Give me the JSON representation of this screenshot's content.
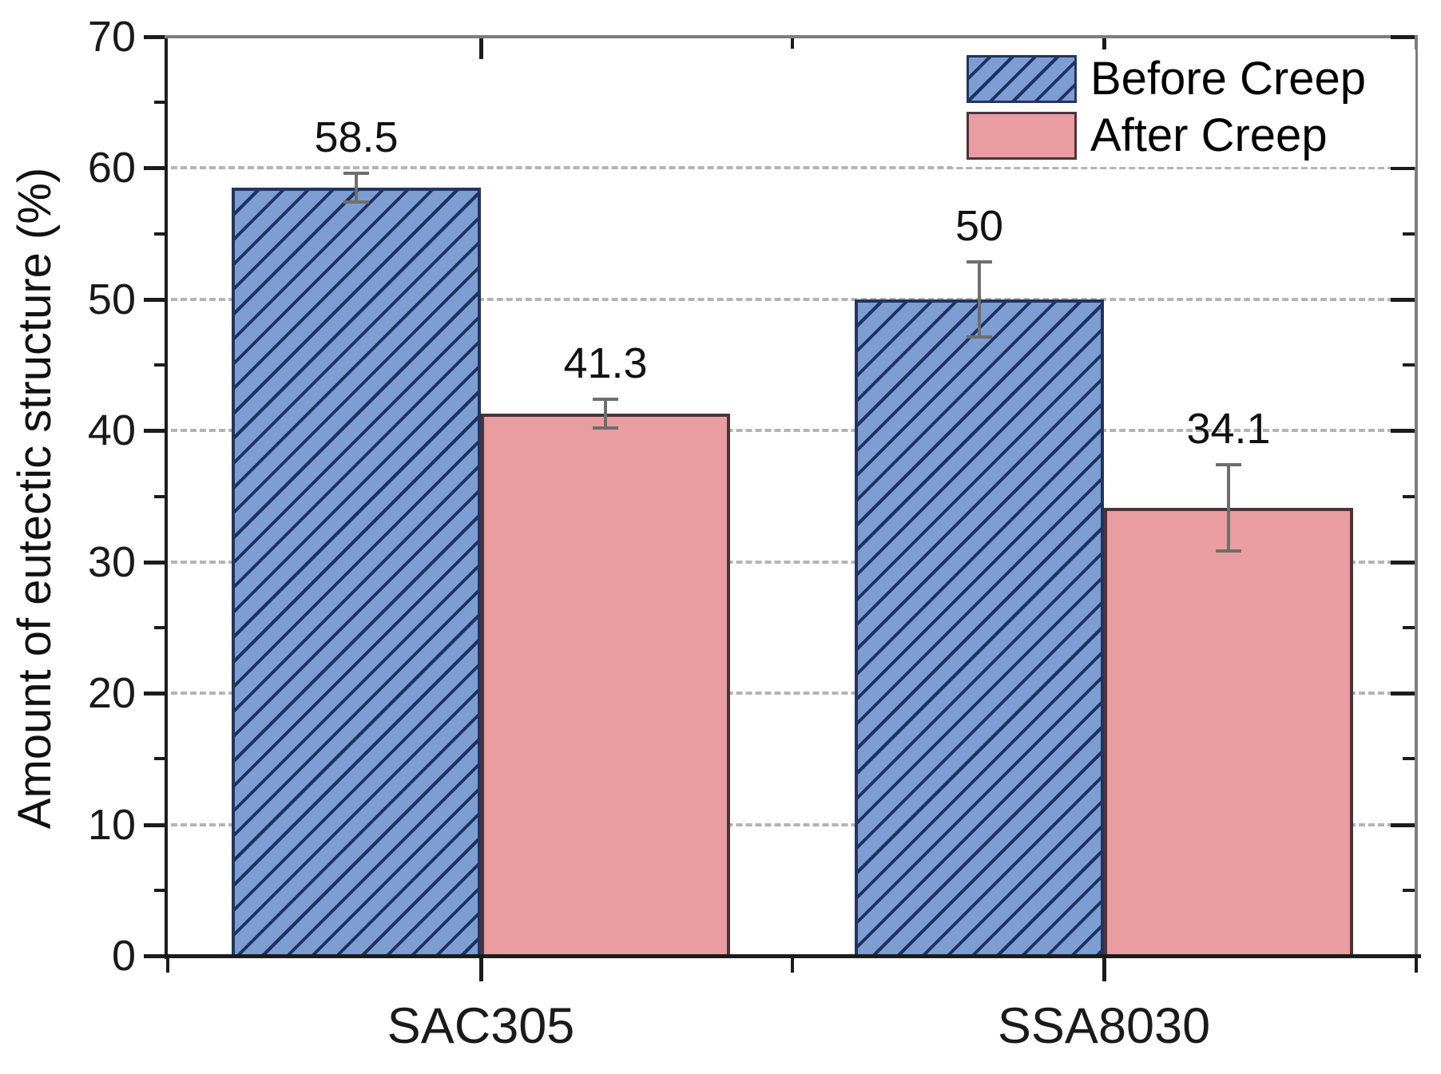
{
  "chart_data": {
    "type": "bar",
    "title": "",
    "ylabel": "Amount of eutectic structure (%)",
    "xlabel": "",
    "categories": [
      "SAC305",
      "SSA8030"
    ],
    "series": [
      {
        "name": "Before Creep",
        "values": [
          58.5,
          50
        ],
        "errors": [
          1.2,
          3.0
        ],
        "labels": [
          "58.5",
          "50"
        ],
        "fill": "#7d9dd3",
        "hatch_color": "#1d3261",
        "edge": "#22355f",
        "hatched": true
      },
      {
        "name": "After Creep",
        "values": [
          41.3,
          34.1
        ],
        "errors": [
          1.2,
          3.4
        ],
        "labels": [
          "41.3",
          "34.1"
        ],
        "fill": "#e99da1",
        "hatch_color": null,
        "edge": "#4a3439",
        "hatched": false
      }
    ],
    "ylim": [
      0,
      70
    ],
    "yticks_major": [
      0,
      10,
      20,
      30,
      40,
      50,
      60,
      70
    ],
    "yticks_minor": [
      5,
      15,
      25,
      35,
      45,
      55,
      65
    ],
    "grid": {
      "show": true,
      "style": "dashed"
    },
    "legend_position": "top-right-inside",
    "bar_orientation": "vertical",
    "error_bars": "vertical-caps"
  },
  "colors": {
    "background": "#ffffff",
    "grid": "#b4b4b4",
    "axis_dark": "#1c1c1c",
    "axis_gray": "#7d7d7d",
    "error_bar": "#6e6e6e",
    "text": "#000000"
  }
}
